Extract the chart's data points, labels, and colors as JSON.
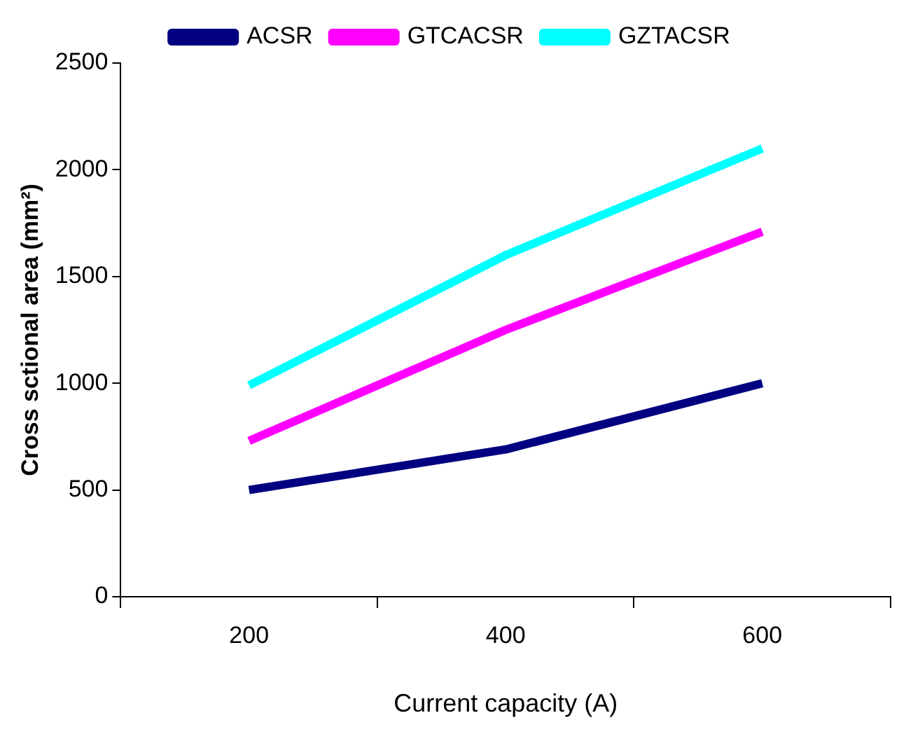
{
  "chart_data": {
    "type": "line",
    "xlabel": "Current capacity (A)",
    "ylabel": "Cross sctional area (mm²)",
    "categories": [
      "200",
      "400",
      "600"
    ],
    "series": [
      {
        "name": "ACSR",
        "color": "#000080",
        "values": [
          500,
          690,
          1000
        ]
      },
      {
        "name": "GTCACSR",
        "color": "#ff00ff",
        "values": [
          730,
          1250,
          1710
        ]
      },
      {
        "name": "GZTACSR",
        "color": "#00ffff",
        "values": [
          990,
          1600,
          2100
        ]
      }
    ],
    "ylim": [
      0,
      2500
    ],
    "yticks": [
      0,
      500,
      1000,
      1500,
      2000,
      2500
    ],
    "grid": false,
    "legend": "top",
    "marker": "none",
    "line_style": "solid"
  }
}
